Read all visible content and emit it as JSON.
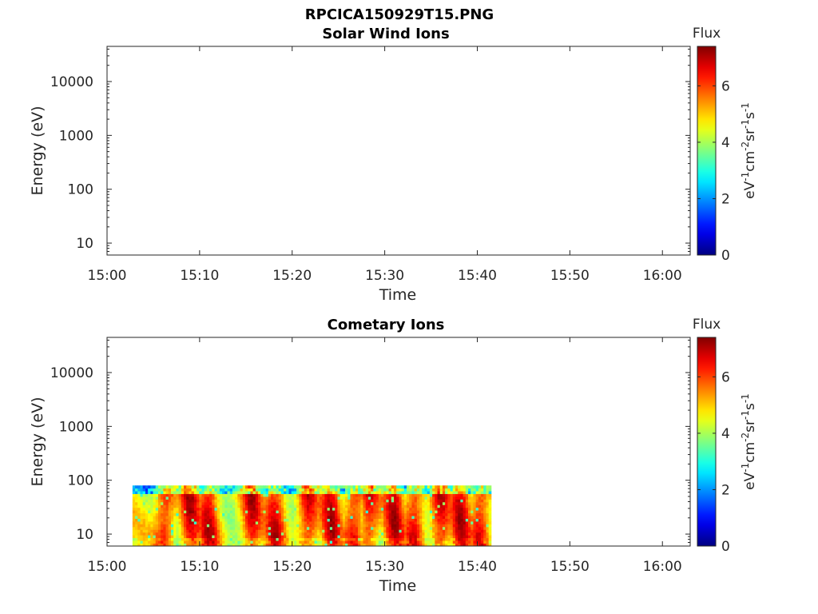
{
  "figure_title": "RPCICA150929T15.PNG",
  "chart_data": [
    {
      "type": "heatmap",
      "title": "Solar Wind Ions",
      "xlabel": "Time",
      "ylabel": "Energy (eV)",
      "x_scale": "time",
      "y_scale": "log",
      "xlim": [
        "15:00",
        "16:03"
      ],
      "ylim": [
        6,
        45000
      ],
      "x_ticks": [
        "15:00",
        "15:10",
        "15:20",
        "15:30",
        "15:40",
        "15:50",
        "16:00"
      ],
      "y_ticks": [
        {
          "value": 10,
          "label": "10"
        },
        {
          "value": 100,
          "label": "100"
        },
        {
          "value": 1000,
          "label": "1000"
        },
        {
          "value": 10000,
          "label": "10000"
        }
      ],
      "colorbar": {
        "title": "Flux",
        "label": "eV-1cm-2sr-1s-1",
        "range": [
          0,
          7.4
        ],
        "ticks": [
          0,
          2,
          4,
          6
        ],
        "colormap": "jet"
      },
      "data_present": false,
      "data_extent": null
    },
    {
      "type": "heatmap",
      "title": "Cometary Ions",
      "xlabel": "Time",
      "ylabel": "Energy (eV)",
      "x_scale": "time",
      "y_scale": "log",
      "xlim": [
        "15:00",
        "16:03"
      ],
      "ylim": [
        6,
        45000
      ],
      "x_ticks": [
        "15:00",
        "15:10",
        "15:20",
        "15:30",
        "15:40",
        "15:50",
        "16:00"
      ],
      "y_ticks": [
        {
          "value": 10,
          "label": "10"
        },
        {
          "value": 100,
          "label": "100"
        },
        {
          "value": 1000,
          "label": "1000"
        },
        {
          "value": 10000,
          "label": "10000"
        }
      ],
      "colorbar": {
        "title": "Flux",
        "label": "eV-1cm-2sr-1s-1",
        "range": [
          0,
          7.4
        ],
        "ticks": [
          0,
          2,
          4,
          6
        ],
        "colormap": "jet"
      },
      "data_present": true,
      "data_extent": {
        "time_start": "15:02:45",
        "time_end": "15:41:30",
        "energy_min": 6,
        "energy_max": 80
      },
      "flux_typical": [
        4.5,
        6.8
      ]
    }
  ]
}
